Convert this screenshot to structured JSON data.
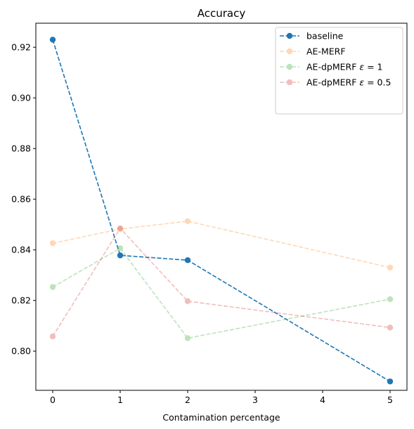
{
  "chart_data": {
    "type": "line",
    "title": "Accuracy",
    "xlabel": "Contamination percentage",
    "ylabel": "",
    "xlim": [
      -0.25,
      5.25
    ],
    "ylim": [
      0.7845,
      0.9295
    ],
    "xticks": [
      0,
      1,
      2,
      3,
      4,
      5
    ],
    "yticks": [
      0.8,
      0.82,
      0.84,
      0.86,
      0.88,
      0.9,
      0.92
    ],
    "ytick_labels": [
      "0.80",
      "0.82",
      "0.84",
      "0.86",
      "0.88",
      "0.90",
      "0.92"
    ],
    "legend_position": "top-right",
    "grid": false,
    "x": [
      0,
      1,
      2,
      5
    ],
    "series": [
      {
        "name": "baseline",
        "legend_main": "baseline",
        "legend_tail": "",
        "values": [
          0.923,
          0.8378,
          0.8359,
          0.788
        ],
        "color": "#1f77b4",
        "opacity": 1.0
      },
      {
        "name": "AE-MERF",
        "legend_main": "AE-MERF",
        "legend_tail": "",
        "values": [
          0.8426,
          0.8482,
          0.8513,
          0.833
        ],
        "color": "#ff7f0e",
        "opacity": 0.3
      },
      {
        "name": "AE-dpMERF ε = 1",
        "legend_main": "AE-dpMERF ",
        "legend_tail": " = 1",
        "values": [
          0.8253,
          0.8406,
          0.8051,
          0.8205
        ],
        "color": "#2ca02c",
        "opacity": 0.3
      },
      {
        "name": "AE-dpMERF ε = 0.5",
        "legend_main": "AE-dpMERF ",
        "legend_tail": " = 0.5",
        "values": [
          0.8058,
          0.8485,
          0.8197,
          0.8093
        ],
        "color": "#d62728",
        "opacity": 0.3
      }
    ]
  }
}
